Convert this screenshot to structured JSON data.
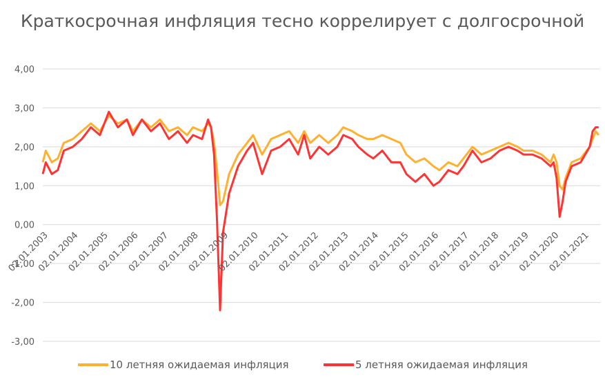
{
  "colors": {
    "series_10y": "#ffb02e",
    "series_5y": "#ff3333",
    "grid": "#d9d9d9",
    "text": "#595959"
  },
  "chart_data": {
    "type": "line",
    "title": "Краткосрочная инфляция тесно коррелирует с долгосрочной",
    "xlabel": "",
    "ylabel": "",
    "ylim": [
      -3,
      4
    ],
    "yticks": [
      "4,00",
      "3,00",
      "2,00",
      "1,00",
      "0,00",
      "-1,00",
      "-2,00",
      "-3,00"
    ],
    "x_tick_labels": [
      "02.01.2003",
      "02.01.2004",
      "02.01.2005",
      "02.01.2006",
      "02.01.2007",
      "02.01.2008",
      "02.01.2009",
      "02.01.2010",
      "02.01.2011",
      "02.01.2012",
      "02.01.2013",
      "02.01.2014",
      "02.01.2015",
      "02.01.2016",
      "02.01.2017",
      "02.01.2018",
      "02.01.2019",
      "02.01.2020",
      "02.01.2021"
    ],
    "grid": true,
    "legend_position": "bottom",
    "series": [
      {
        "name": "10 летняя ожидаемая инфляция",
        "color": "#ffb02e",
        "x": [
          2003.0,
          2003.1,
          2003.3,
          2003.5,
          2003.7,
          2004.0,
          2004.3,
          2004.6,
          2004.9,
          2005.2,
          2005.5,
          2005.8,
          2006.0,
          2006.3,
          2006.6,
          2006.9,
          2007.2,
          2007.5,
          2007.8,
          2008.0,
          2008.3,
          2008.5,
          2008.6,
          2008.7,
          2008.8,
          2008.9,
          2009.0,
          2009.2,
          2009.5,
          2009.8,
          2010.0,
          2010.3,
          2010.6,
          2010.9,
          2011.2,
          2011.5,
          2011.7,
          2011.9,
          2012.2,
          2012.5,
          2012.8,
          2013.0,
          2013.3,
          2013.5,
          2013.8,
          2014.0,
          2014.3,
          2014.6,
          2014.9,
          2015.1,
          2015.4,
          2015.7,
          2016.0,
          2016.2,
          2016.5,
          2016.8,
          2017.0,
          2017.3,
          2017.6,
          2017.9,
          2018.2,
          2018.5,
          2018.8,
          2019.0,
          2019.3,
          2019.6,
          2019.9,
          2020.0,
          2020.1,
          2020.2,
          2020.3,
          2020.4,
          2020.6,
          2020.9,
          2021.2,
          2021.3,
          2021.4,
          2021.5
        ],
        "values": [
          1.6,
          1.9,
          1.6,
          1.7,
          2.1,
          2.2,
          2.4,
          2.6,
          2.4,
          2.8,
          2.6,
          2.7,
          2.4,
          2.7,
          2.5,
          2.7,
          2.4,
          2.5,
          2.3,
          2.5,
          2.4,
          2.6,
          2.5,
          2.1,
          1.4,
          0.5,
          0.6,
          1.3,
          1.8,
          2.1,
          2.3,
          1.8,
          2.2,
          2.3,
          2.4,
          2.1,
          2.4,
          2.1,
          2.3,
          2.1,
          2.3,
          2.5,
          2.4,
          2.3,
          2.2,
          2.2,
          2.3,
          2.2,
          2.1,
          1.8,
          1.6,
          1.7,
          1.5,
          1.4,
          1.6,
          1.5,
          1.7,
          2.0,
          1.8,
          1.9,
          2.0,
          2.1,
          2.0,
          1.9,
          1.9,
          1.8,
          1.6,
          1.8,
          1.6,
          1.0,
          0.9,
          1.2,
          1.6,
          1.7,
          2.0,
          2.2,
          2.4,
          2.3
        ]
      },
      {
        "name": "5 летняя ожидаемая инфляция",
        "color": "#ff3333",
        "x": [
          2003.0,
          2003.1,
          2003.3,
          2003.5,
          2003.7,
          2004.0,
          2004.3,
          2004.6,
          2004.9,
          2005.2,
          2005.5,
          2005.8,
          2006.0,
          2006.3,
          2006.6,
          2006.9,
          2007.2,
          2007.5,
          2007.8,
          2008.0,
          2008.3,
          2008.5,
          2008.6,
          2008.7,
          2008.8,
          2008.9,
          2009.0,
          2009.2,
          2009.5,
          2009.8,
          2010.0,
          2010.3,
          2010.6,
          2010.9,
          2011.2,
          2011.5,
          2011.7,
          2011.9,
          2012.2,
          2012.5,
          2012.8,
          2013.0,
          2013.3,
          2013.5,
          2013.8,
          2014.0,
          2014.3,
          2014.6,
          2014.9,
          2015.1,
          2015.4,
          2015.7,
          2016.0,
          2016.2,
          2016.5,
          2016.8,
          2017.0,
          2017.3,
          2017.6,
          2017.9,
          2018.2,
          2018.5,
          2018.8,
          2019.0,
          2019.3,
          2019.6,
          2019.9,
          2020.0,
          2020.1,
          2020.2,
          2020.3,
          2020.4,
          2020.6,
          2020.9,
          2021.2,
          2021.3,
          2021.4,
          2021.5
        ],
        "values": [
          1.3,
          1.6,
          1.3,
          1.4,
          1.9,
          2.0,
          2.2,
          2.5,
          2.3,
          2.9,
          2.5,
          2.7,
          2.3,
          2.7,
          2.4,
          2.6,
          2.2,
          2.4,
          2.1,
          2.3,
          2.2,
          2.7,
          2.5,
          1.8,
          0.1,
          -2.2,
          -0.2,
          0.8,
          1.5,
          1.9,
          2.1,
          1.3,
          1.9,
          2.0,
          2.2,
          1.8,
          2.3,
          1.7,
          2.0,
          1.8,
          2.0,
          2.3,
          2.2,
          2.0,
          1.8,
          1.7,
          1.9,
          1.6,
          1.6,
          1.3,
          1.1,
          1.3,
          1.0,
          1.1,
          1.4,
          1.3,
          1.5,
          1.9,
          1.6,
          1.7,
          1.9,
          2.0,
          1.9,
          1.8,
          1.8,
          1.7,
          1.5,
          1.6,
          1.2,
          0.2,
          0.6,
          1.1,
          1.5,
          1.6,
          2.0,
          2.4,
          2.5,
          2.5
        ]
      }
    ]
  }
}
